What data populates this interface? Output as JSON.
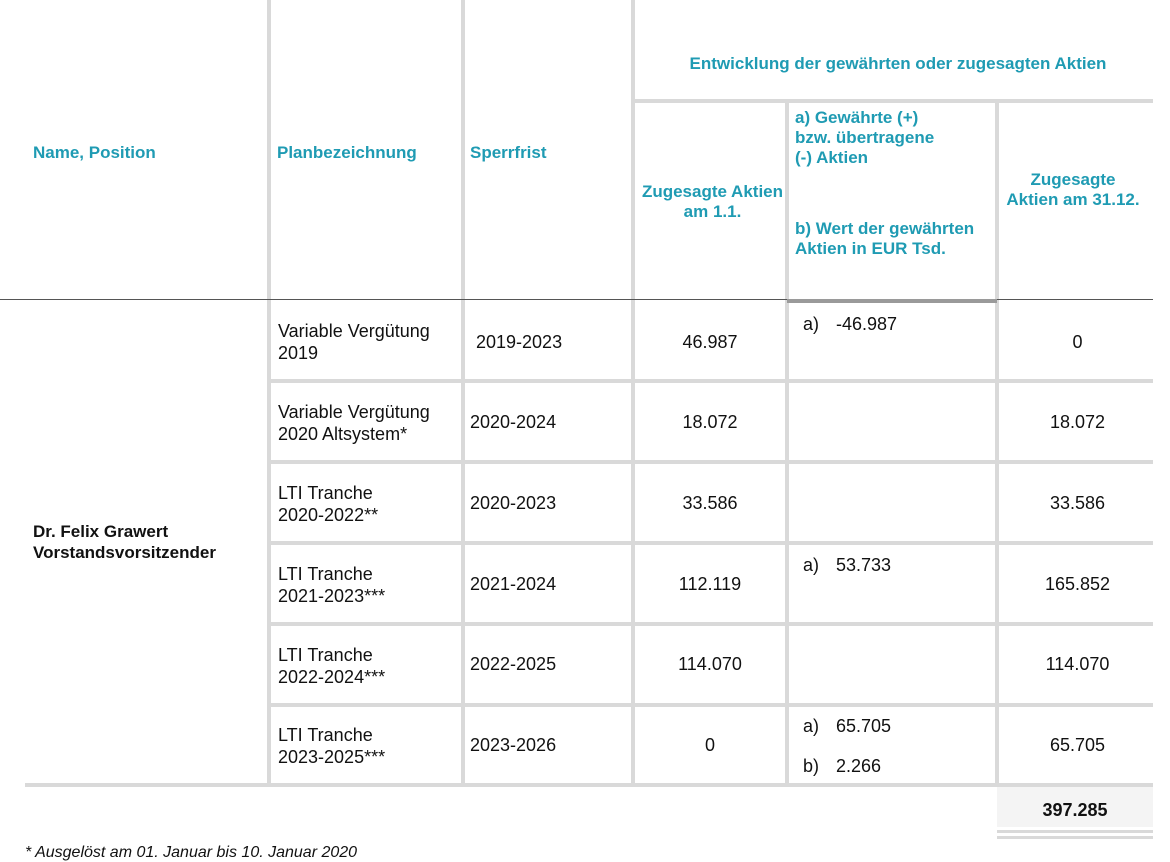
{
  "headers": {
    "name_position": "Name, Position",
    "plan": "Planbezeichnung",
    "lock": "Sperrfrist",
    "group": "Entwicklung der gewährten oder zugesagten Aktien",
    "start": "Zugesagte Aktien am 1.1.",
    "change_a": "a) Gewährte (+) bzw. übertragene (-) Aktien",
    "change_b": "b) Wert der gewährten Aktien in EUR Tsd.",
    "end": "Zugesagte Aktien am 31.12."
  },
  "person": {
    "name": "Dr. Felix Grawert",
    "position": "Vorstandsvorsitzender"
  },
  "rows": [
    {
      "plan1": "Variable Vergütung",
      "plan2": "2019",
      "lock": "2019-2023",
      "start": "46.987",
      "a": "-46.987",
      "b": "",
      "end": "0"
    },
    {
      "plan1": "Variable Vergütung",
      "plan2": "2020 Altsystem*",
      "lock": "2020-2024",
      "start": "18.072",
      "a": "",
      "b": "",
      "end": "18.072"
    },
    {
      "plan1": "LTI Tranche",
      "plan2": "2020-2022**",
      "lock": "2020-2023",
      "start": "33.586",
      "a": "",
      "b": "",
      "end": "33.586"
    },
    {
      "plan1": "LTI Tranche",
      "plan2": "2021-2023***",
      "lock": "2021-2024",
      "start": "112.119",
      "a": "53.733",
      "b": "",
      "end": "165.852"
    },
    {
      "plan1": "LTI Tranche",
      "plan2": "2022-2024***",
      "lock": "2022-2025",
      "start": "114.070",
      "a": "",
      "b": "",
      "end": "114.070"
    },
    {
      "plan1": "LTI Tranche",
      "plan2": "2023-2025***",
      "lock": "2023-2026",
      "start": "0",
      "a": "65.705",
      "b": "2.266",
      "end": "65.705"
    }
  ],
  "markers": {
    "a": "a)",
    "b": "b)"
  },
  "total": "397.285",
  "footnote": "* Ausgelöst am 01. Januar bis 10. Januar 2020"
}
